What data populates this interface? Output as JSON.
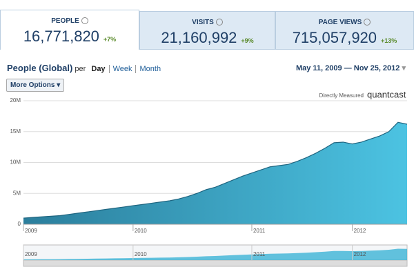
{
  "tabs": [
    {
      "label": "PEOPLE",
      "value": "16,771,820",
      "change": "+7%"
    },
    {
      "label": "VISITS",
      "value": "21,160,992",
      "change": "+9%"
    },
    {
      "label": "PAGE VIEWS",
      "value": "715,057,920",
      "change": "+13%"
    }
  ],
  "header": {
    "title": "People (Global)",
    "per": "per",
    "periods": [
      "Day",
      "Week",
      "Month"
    ],
    "date_start": "May 11, 2009",
    "date_sep": "—",
    "date_end": "Nov 25, 2012",
    "more_options": "More Options",
    "measured": "Directly Measured",
    "brand": "quantcast"
  },
  "chart_data": {
    "type": "area",
    "color": "#3cb4d6",
    "line_color": "#1f6580",
    "categories": [
      "2009",
      null,
      null,
      null,
      null,
      null,
      null,
      null,
      null,
      null,
      null,
      null,
      "2010",
      null,
      null,
      null,
      null,
      null,
      null,
      null,
      null,
      null,
      null,
      null,
      null,
      "2011",
      null,
      null,
      null,
      null,
      null,
      null,
      null,
      null,
      null,
      null,
      "2012",
      null,
      null,
      null,
      null,
      null,
      null
    ],
    "values": [
      1000000,
      1100000,
      1200000,
      1300000,
      1400000,
      1600000,
      1800000,
      2000000,
      2200000,
      2400000,
      2600000,
      2800000,
      3000000,
      3200000,
      3400000,
      3600000,
      3800000,
      4100000,
      4500000,
      5000000,
      5600000,
      6000000,
      6600000,
      7200000,
      7800000,
      8300000,
      8800000,
      9300000,
      9500000,
      9700000,
      10200000,
      10800000,
      11500000,
      12300000,
      13200000,
      13300000,
      13000000,
      13300000,
      13800000,
      14300000,
      15000000,
      16500000,
      16200000
    ],
    "ylim": [
      0,
      20000000
    ],
    "yticks": [
      0,
      {
        "value": 5000000,
        "label": "5M"
      },
      {
        "value": 10000000,
        "label": "10M"
      },
      {
        "value": 15000000,
        "label": "15M"
      },
      {
        "value": 20000000,
        "label": "20M"
      }
    ],
    "grid": true
  }
}
